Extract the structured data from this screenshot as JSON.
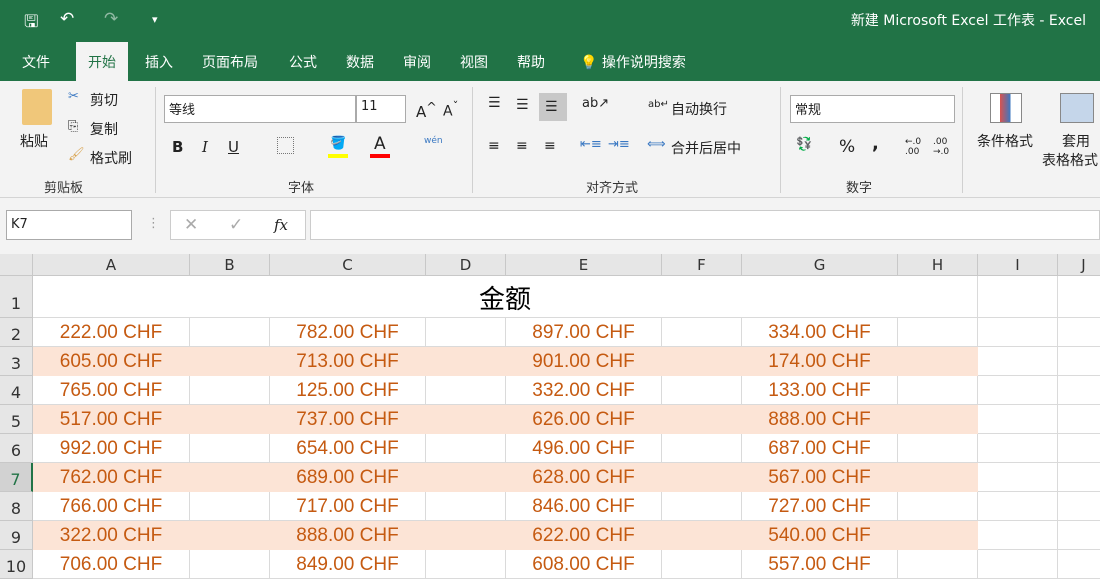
{
  "window": {
    "title": "新建 Microsoft Excel 工作表  -  Excel"
  },
  "quick_access": {
    "save": "🖫",
    "undo": "↶",
    "redo": "↷",
    "more": "▾"
  },
  "tabs": [
    "文件",
    "开始",
    "插入",
    "页面布局",
    "公式",
    "数据",
    "审阅",
    "视图",
    "帮助"
  ],
  "active_tab": "开始",
  "tell_me": "操作说明搜索",
  "ribbon": {
    "clipboard": {
      "paste": "粘贴",
      "cut": "剪切",
      "copy": "复制",
      "format_painter": "格式刷",
      "group": "剪贴板"
    },
    "font": {
      "name": "等线",
      "size": "11",
      "bold": "B",
      "italic": "I",
      "underline": "U",
      "group": "字体",
      "phonetic": "wén"
    },
    "alignment": {
      "wrap": "自动换行",
      "merge": "合并后居中",
      "group": "对齐方式"
    },
    "number": {
      "format": "常规",
      "percent": "%",
      "comma": ",",
      "group": "数字"
    },
    "styles": {
      "conditional": "条件格式",
      "table1": "套用",
      "table2": "表格格式"
    }
  },
  "colors": {
    "fill_highlight": "#ffff00",
    "font_color": "#ff0000",
    "cell_text": "#c55a11",
    "band_fill": "#fce4d6",
    "brand": "#217346"
  },
  "formula_bar": {
    "name_box": "K7",
    "value": "",
    "fx": "fx"
  },
  "sheet": {
    "columns": [
      "A",
      "B",
      "C",
      "D",
      "E",
      "F",
      "G",
      "H",
      "I",
      "J"
    ],
    "title": "金额",
    "active_row": 7,
    "rows": [
      [
        "222.00 CHF",
        "782.00 CHF",
        "897.00 CHF",
        "334.00 CHF"
      ],
      [
        "605.00 CHF",
        "713.00 CHF",
        "901.00 CHF",
        "174.00 CHF"
      ],
      [
        "765.00 CHF",
        "125.00 CHF",
        "332.00 CHF",
        "133.00 CHF"
      ],
      [
        "517.00 CHF",
        "737.00 CHF",
        "626.00 CHF",
        "888.00 CHF"
      ],
      [
        "992.00 CHF",
        "654.00 CHF",
        "496.00 CHF",
        "687.00 CHF"
      ],
      [
        "762.00 CHF",
        "689.00 CHF",
        "628.00 CHF",
        "567.00 CHF"
      ],
      [
        "766.00 CHF",
        "717.00 CHF",
        "846.00 CHF",
        "727.00 CHF"
      ],
      [
        "322.00 CHF",
        "888.00 CHF",
        "622.00 CHF",
        "540.00 CHF"
      ],
      [
        "706.00 CHF",
        "849.00 CHF",
        "608.00 CHF",
        "557.00 CHF"
      ]
    ]
  }
}
